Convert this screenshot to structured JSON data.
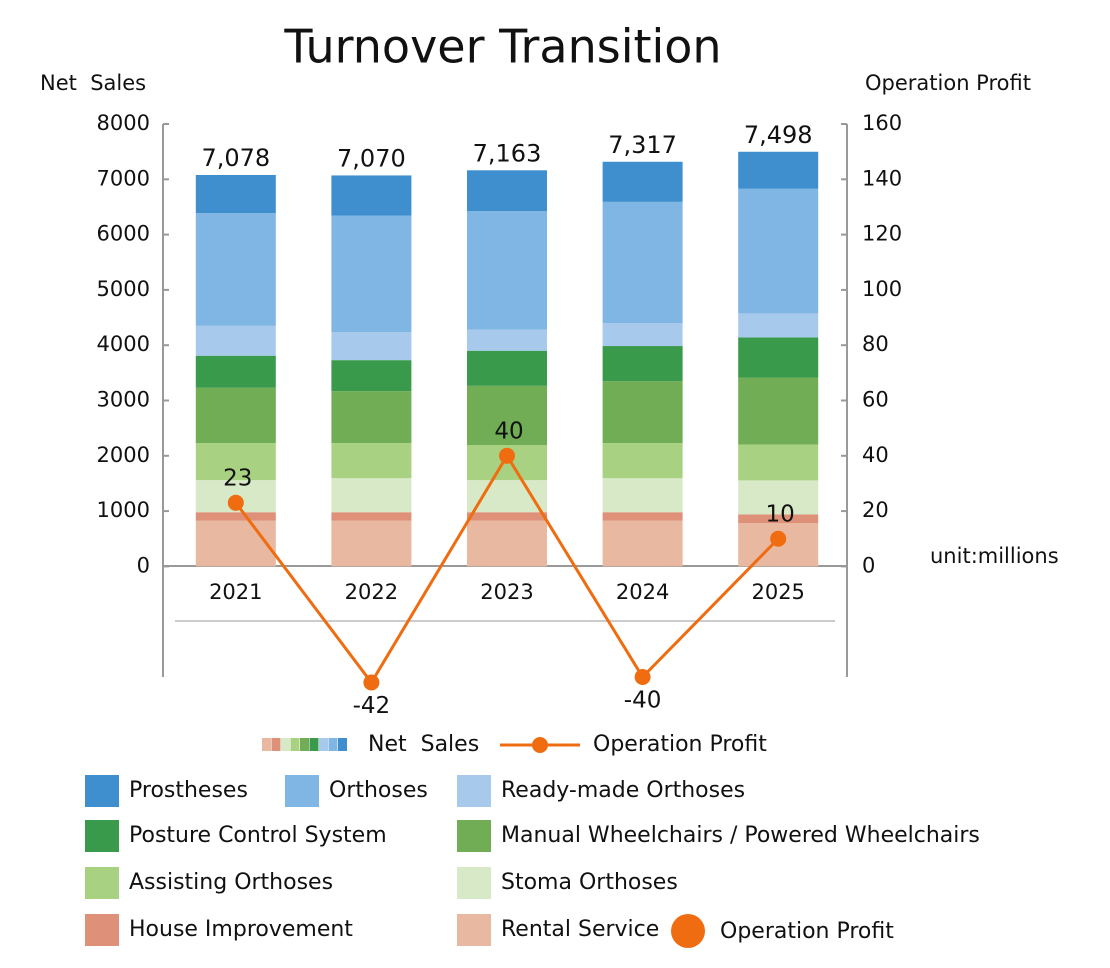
{
  "chart_data": {
    "type": "bar",
    "title": "Turnover Transition",
    "y_label": "Net  Sales",
    "y2_label": "Operation Profit",
    "unit_note": "unit:millions",
    "categories": [
      "2021",
      "2022",
      "2023",
      "2024",
      "2025"
    ],
    "ylim": [
      -2000,
      8000
    ],
    "yticks": [
      0,
      1000,
      2000,
      3000,
      4000,
      5000,
      6000,
      7000,
      8000
    ],
    "y2lim": [
      -40,
      160
    ],
    "y2ticks": [
      0,
      20,
      40,
      60,
      80,
      100,
      120,
      140,
      160
    ],
    "stacked": true,
    "series": [
      {
        "name": "Prostheses",
        "color": "#3f8fcf",
        "values": [
          690,
          725,
          740,
          725,
          670
        ]
      },
      {
        "name": "Orthoses",
        "color": "#80b6e3",
        "values": [
          2038,
          2110,
          2143,
          2192,
          2253
        ]
      },
      {
        "name": "Ready-made Orthoses",
        "color": "#a6c9ec",
        "values": [
          540,
          505,
          380,
          415,
          435
        ]
      },
      {
        "name": "Posture Control System",
        "color": "#3a9a4b",
        "values": [
          580,
          560,
          635,
          635,
          725
        ]
      },
      {
        "name": "Manual Wheelchairs / Powered Wheelchairs",
        "color": "#70ad55",
        "values": [
          1000,
          940,
          1070,
          1120,
          1210
        ]
      },
      {
        "name": "Assisting Orthoses",
        "color": "#a8d282",
        "values": [
          670,
          635,
          635,
          635,
          650
        ]
      },
      {
        "name": "Stoma Orthoses",
        "color": "#d7e9c7",
        "values": [
          580,
          615,
          580,
          615,
          615
        ]
      },
      {
        "name": "House Improvement",
        "color": "#de9078",
        "values": [
          150,
          150,
          150,
          150,
          160
        ]
      },
      {
        "name": "Rental Service",
        "color": "#e8b8a0",
        "values": [
          830,
          830,
          830,
          830,
          780
        ]
      }
    ],
    "totals": [
      7078,
      7070,
      7163,
      7317,
      7498
    ],
    "total_labels": [
      "7,078",
      "7,070",
      "7,163",
      "7,317",
      "7,498"
    ],
    "line_series": {
      "name": "Operation Profit",
      "color": "#ef6c10",
      "axis": "y2",
      "values": [
        23,
        -42,
        40,
        -40,
        10
      ]
    }
  }
}
